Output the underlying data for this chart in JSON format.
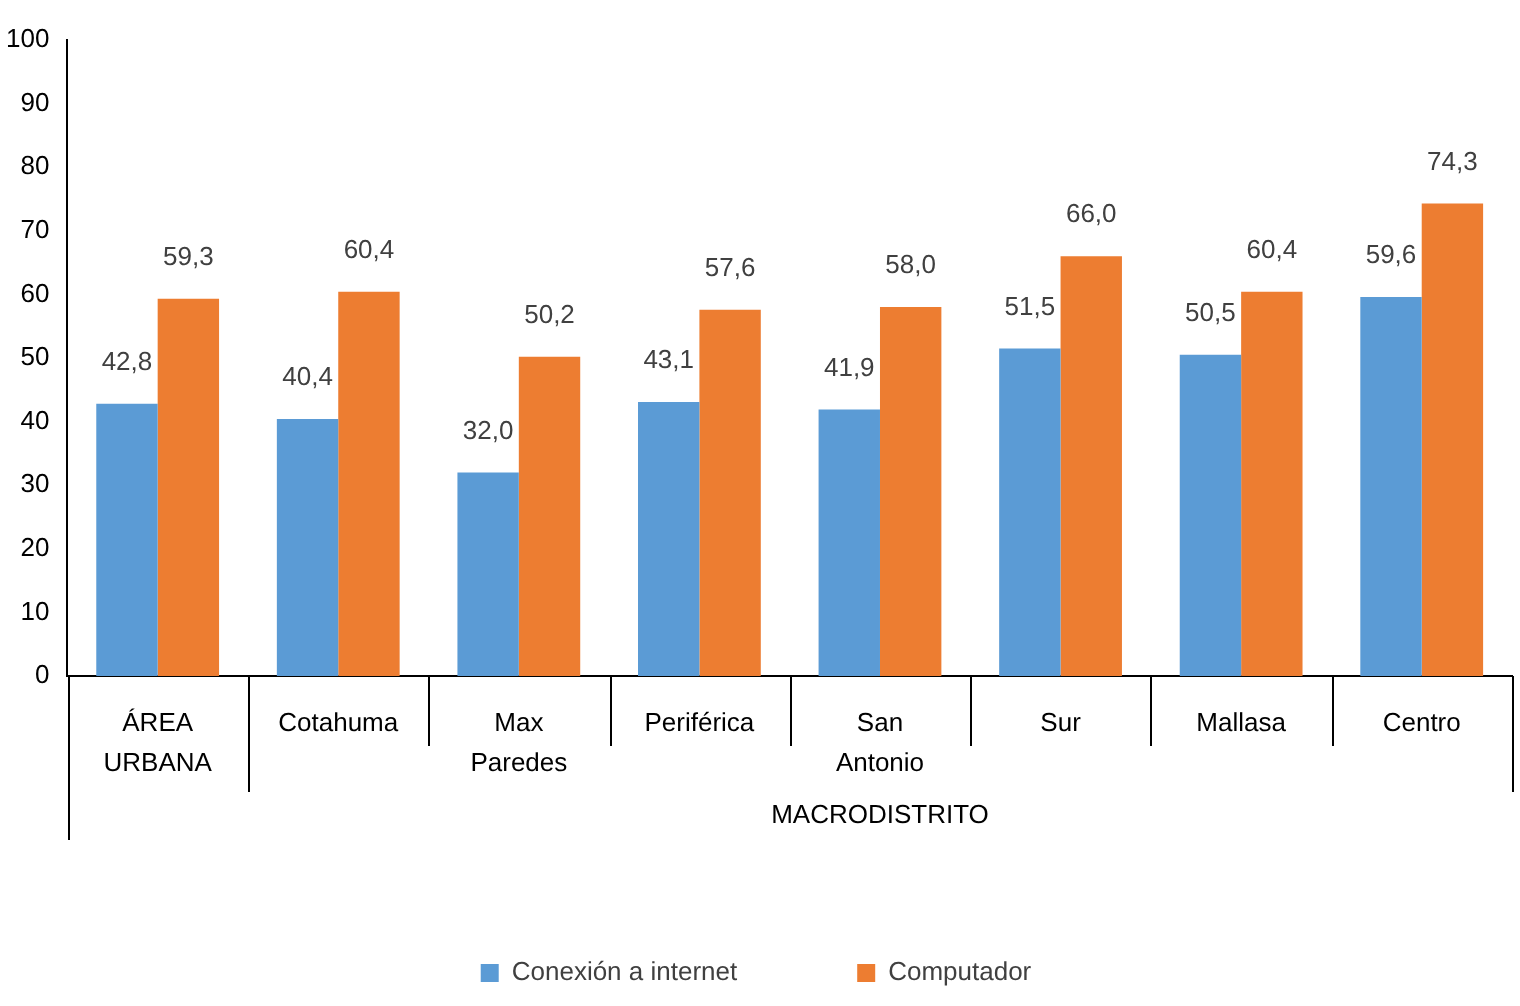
{
  "chart_data": {
    "type": "bar",
    "categories": [
      "ÁREA URBANA",
      "Cotahuma",
      "Max Paredes",
      "Periférica",
      "San Antonio",
      "Sur",
      "Mallasa",
      "Centro"
    ],
    "series": [
      {
        "name": "Conexión a internet",
        "color": "#5b9bd5",
        "values": [
          42.8,
          40.4,
          32.0,
          43.1,
          41.9,
          51.5,
          50.5,
          59.6
        ],
        "value_labels": [
          "42,8",
          "40,4",
          "32,0",
          "43,1",
          "41,9",
          "51,5",
          "50,5",
          "59,6"
        ]
      },
      {
        "name": "Computador",
        "color": "#ed7d31",
        "values": [
          59.3,
          60.4,
          50.2,
          57.6,
          58.0,
          66.0,
          60.4,
          74.3
        ],
        "value_labels": [
          "59,3",
          "60,4",
          "50,2",
          "57,6",
          "58,0",
          "66,0",
          "60,4",
          "74,3"
        ]
      }
    ],
    "ylim": [
      0,
      100
    ],
    "yticks": [
      0,
      10,
      20,
      30,
      40,
      50,
      60,
      70,
      80,
      90,
      100
    ],
    "grid": false,
    "legend": "bottom",
    "annotations": [
      "MACRODISTRITO"
    ]
  }
}
